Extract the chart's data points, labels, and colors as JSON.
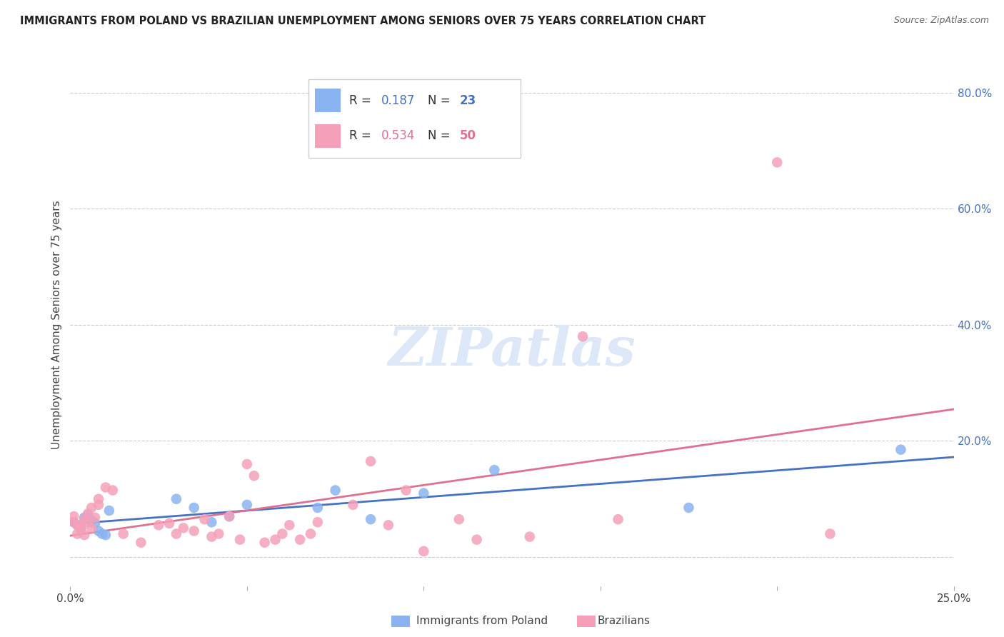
{
  "title": "IMMIGRANTS FROM POLAND VS BRAZILIAN UNEMPLOYMENT AMONG SENIORS OVER 75 YEARS CORRELATION CHART",
  "source": "Source: ZipAtlas.com",
  "ylabel": "Unemployment Among Seniors over 75 years",
  "x_min": 0.0,
  "x_max": 0.25,
  "y_min": -0.05,
  "y_max": 0.85,
  "x_ticks": [
    0.0,
    0.05,
    0.1,
    0.15,
    0.2,
    0.25
  ],
  "x_tick_labels": [
    "0.0%",
    "",
    "",
    "",
    "",
    "25.0%"
  ],
  "y_ticks_right": [
    0.0,
    0.2,
    0.4,
    0.6,
    0.8
  ],
  "y_tick_labels_right": [
    "",
    "20.0%",
    "40.0%",
    "60.0%",
    "80.0%"
  ],
  "poland_R": 0.187,
  "poland_N": 23,
  "brazil_R": 0.534,
  "brazil_N": 50,
  "poland_color": "#8ab4f0",
  "brazil_color": "#f5a0b8",
  "poland_line_color": "#4472c4",
  "brazil_line_color": "#e07090",
  "watermark": "ZIPatlas",
  "watermark_color": "#dce8f8",
  "poland_x": [
    0.001,
    0.002,
    0.003,
    0.004,
    0.005,
    0.006,
    0.007,
    0.008,
    0.009,
    0.01,
    0.011,
    0.03,
    0.035,
    0.04,
    0.045,
    0.05,
    0.07,
    0.075,
    0.085,
    0.1,
    0.12,
    0.175,
    0.235
  ],
  "poland_y": [
    0.06,
    0.055,
    0.05,
    0.068,
    0.072,
    0.063,
    0.058,
    0.045,
    0.04,
    0.038,
    0.08,
    0.1,
    0.085,
    0.06,
    0.07,
    0.09,
    0.085,
    0.115,
    0.065,
    0.11,
    0.15,
    0.085,
    0.185
  ],
  "brazil_x": [
    0.001,
    0.001,
    0.002,
    0.002,
    0.003,
    0.003,
    0.004,
    0.004,
    0.005,
    0.005,
    0.006,
    0.006,
    0.007,
    0.008,
    0.008,
    0.01,
    0.012,
    0.015,
    0.02,
    0.025,
    0.028,
    0.03,
    0.032,
    0.035,
    0.038,
    0.04,
    0.042,
    0.045,
    0.048,
    0.05,
    0.052,
    0.055,
    0.058,
    0.06,
    0.062,
    0.065,
    0.068,
    0.07,
    0.08,
    0.085,
    0.09,
    0.095,
    0.1,
    0.11,
    0.115,
    0.13,
    0.145,
    0.155,
    0.2,
    0.215
  ],
  "brazil_y": [
    0.06,
    0.07,
    0.055,
    0.04,
    0.048,
    0.052,
    0.065,
    0.038,
    0.06,
    0.075,
    0.085,
    0.05,
    0.068,
    0.1,
    0.09,
    0.12,
    0.115,
    0.04,
    0.025,
    0.055,
    0.058,
    0.04,
    0.05,
    0.045,
    0.065,
    0.035,
    0.04,
    0.07,
    0.03,
    0.16,
    0.14,
    0.025,
    0.03,
    0.04,
    0.055,
    0.03,
    0.04,
    0.06,
    0.09,
    0.165,
    0.055,
    0.115,
    0.01,
    0.065,
    0.03,
    0.035,
    0.38,
    0.065,
    0.68,
    0.04
  ]
}
